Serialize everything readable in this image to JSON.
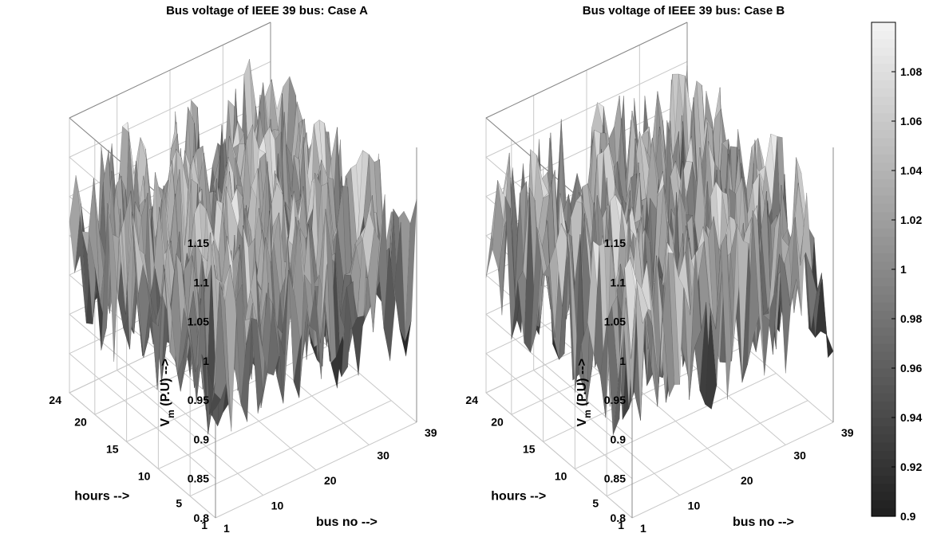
{
  "chart_data": [
    {
      "type": "surface",
      "title": "Bus voltage of  IEEE 39 bus: Case A",
      "xlabel": "bus no -->",
      "ylabel": "hours -->",
      "zlabel_main": "V",
      "zlabel_sub": "m",
      "zlabel_rest": " (P.U) -->",
      "xlim": [
        1,
        39
      ],
      "ylim": [
        1,
        24
      ],
      "zlim": [
        0.8,
        1.15
      ],
      "xticks": [
        "1",
        "10",
        "20",
        "30",
        "39"
      ],
      "yticks": [
        "1",
        "5",
        "10",
        "15",
        "20",
        "24"
      ],
      "zticks": [
        "0.8",
        "0.85",
        "0.9",
        "0.95",
        "1",
        "1.05",
        "1.1",
        "1.15"
      ],
      "grid": true,
      "colormap": "gray",
      "surface": {
        "description_values": "random bus voltages per bus (1-39) and hour (1-24)",
        "min": 0.86,
        "max": 1.12,
        "mean": 1.0,
        "seed": 11
      }
    },
    {
      "type": "surface",
      "title": "Bus voltage of  IEEE 39 bus: Case B",
      "xlabel": "bus no -->",
      "ylabel": "hours -->",
      "zlabel_main": "V",
      "zlabel_sub": "m",
      "zlabel_rest": " (P.U) -->",
      "xlim": [
        1,
        39
      ],
      "ylim": [
        1,
        24
      ],
      "zlim": [
        0.8,
        1.15
      ],
      "xticks": [
        "1",
        "10",
        "20",
        "30",
        "39"
      ],
      "yticks": [
        "1",
        "5",
        "10",
        "15",
        "20",
        "24"
      ],
      "zticks": [
        "0.8",
        "0.85",
        "0.9",
        "0.95",
        "1",
        "1.05",
        "1.1",
        "1.15"
      ],
      "grid": true,
      "colormap": "gray",
      "surface": {
        "description_values": "random bus voltages per bus (1-39) and hour (1-24)",
        "min": 0.86,
        "max": 1.12,
        "mean": 1.0,
        "seed": 29
      }
    }
  ],
  "colorbar": {
    "min": 0.9,
    "max": 1.1,
    "ticks": [
      "0.9",
      "0.92",
      "0.94",
      "0.96",
      "0.98",
      "1",
      "1.02",
      "1.04",
      "1.06",
      "1.08"
    ],
    "colors": {
      "low": "#1e1e1e",
      "high": "#f4f4f4"
    }
  }
}
